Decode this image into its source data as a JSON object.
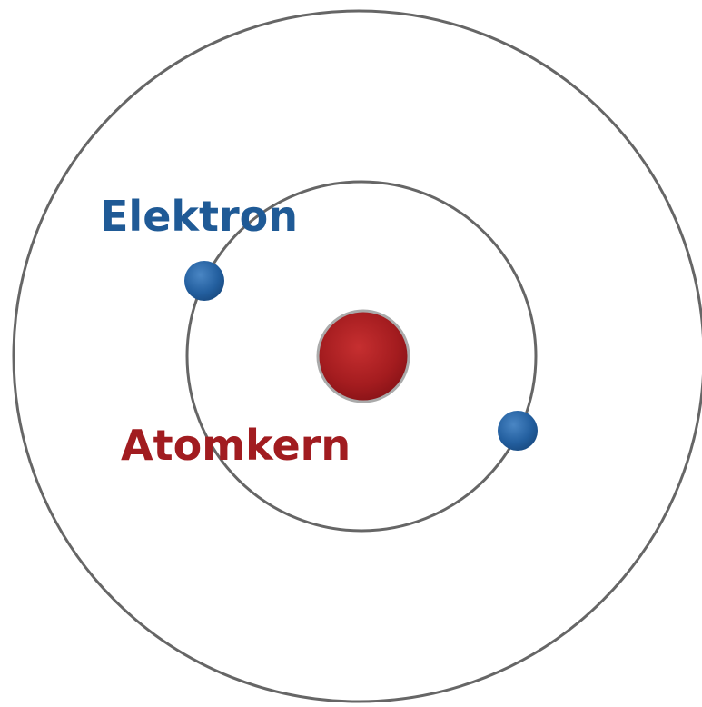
{
  "labels": {
    "electron": "Elektron",
    "nucleus": "Atomkern"
  }
}
